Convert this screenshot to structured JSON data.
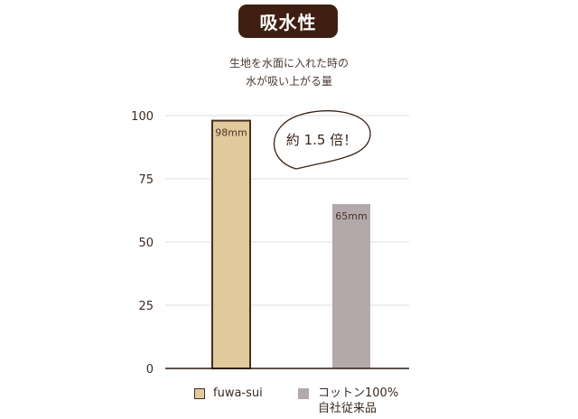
{
  "title": "吸水性",
  "subtitle": [
    "生地を水面に入れた時の",
    "水が吸い上がる量"
  ],
  "annotation": "約 1.5 倍！",
  "chart_data": {
    "type": "bar",
    "categories": [
      "fuwa-sui",
      "コットン100% 自社従来品"
    ],
    "values": [
      98,
      65
    ],
    "data_labels": [
      "98mm",
      "65mm"
    ],
    "yticks": [
      "0",
      "25",
      "50",
      "75",
      "100"
    ],
    "ylim": [
      0,
      100
    ],
    "grid": true,
    "legend": "bottom",
    "legend_entries": [
      {
        "label": "fuwa-sui"
      },
      {
        "label": "コットン100%",
        "label2": "自社従来品"
      }
    ],
    "colors": [
      "#e2c99c",
      "#b3a9ab"
    ],
    "border_colors": [
      "#4a2e1e",
      "none"
    ]
  }
}
